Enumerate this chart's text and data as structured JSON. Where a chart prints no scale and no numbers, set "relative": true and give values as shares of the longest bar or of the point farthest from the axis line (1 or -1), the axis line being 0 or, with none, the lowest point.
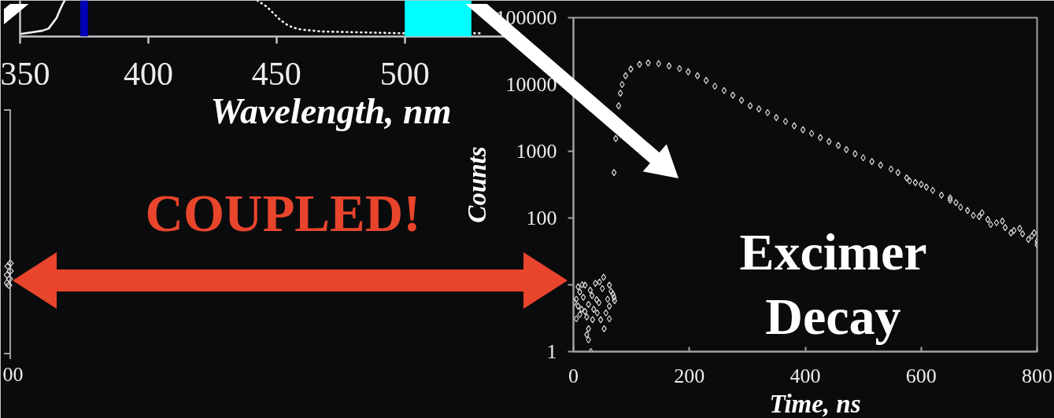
{
  "chart_data": [
    {
      "type": "line",
      "relative": true,
      "xlim": [
        350,
        540
      ],
      "xticks": [
        350,
        400,
        450,
        500
      ],
      "xlabel": "Wavelength, nm",
      "tick_labels": "x",
      "series": [
        {
          "color": "#f2f2f2",
          "x": [
            350.1,
            354.8,
            358.6,
            361.1,
            362.4,
            364.2,
            365.5,
            366.7,
            367.4
          ],
          "values": [
            0.07,
            0.12,
            0.16,
            0.22,
            0.34,
            0.51,
            0.73,
            0.91,
            1.0
          ]
        },
        {
          "color": "#f2f2f2",
          "line_style": "dotted",
          "x": [
            442.5,
            446.3,
            448.7,
            451.3,
            453.8,
            456.3,
            460,
            467.5,
            480.1,
            498.8,
            530
          ],
          "values": [
            1.0,
            0.82,
            0.65,
            0.47,
            0.34,
            0.25,
            0.19,
            0.14,
            0.12,
            0.09,
            0.09
          ]
        }
      ],
      "bands": [
        {
          "axis": "x",
          "from": 373.5,
          "to": 376.5,
          "color": "#0000b4"
        },
        {
          "axis": "x",
          "from": 500,
          "to": 526,
          "color": "#00ffff"
        }
      ]
    },
    {
      "type": "scatter",
      "marker": "diamond",
      "log": true,
      "xlim": [
        0,
        800
      ],
      "ylim": [
        1,
        100000
      ],
      "xticks": [
        0,
        200,
        400,
        600,
        800
      ],
      "yticks": [
        1,
        {
          "value": 10,
          "label": null
        },
        100,
        1000,
        10000,
        100000
      ],
      "xlabel": "Time, ns",
      "ylabel": "Counts",
      "annotations": [
        "Excimer\nDecay",
        "COUPLED!",
        "00"
      ],
      "series": [
        {
          "color": "#d9d9d9",
          "x": [
            52,
            8,
            20,
            38,
            62,
            11,
            29,
            50,
            68,
            5,
            17,
            32,
            59,
            71,
            8,
            26,
            44,
            62,
            14,
            35,
            56,
            5,
            23,
            41,
            62,
            11,
            47,
            53,
            26,
            23,
            26,
            30,
            2,
            15,
            45,
            65,
            70,
            40,
            20,
            33,
            70,
            73,
            76,
            78,
            81,
            84,
            90,
            99,
            114,
            129,
            147,
            165,
            183,
            198,
            214,
            229,
            244,
            260,
            275,
            290,
            305,
            320,
            335,
            350,
            366,
            381,
            396,
            411,
            426,
            441,
            457,
            471,
            486,
            500,
            515,
            530,
            548,
            560,
            575,
            590,
            609,
            620,
            635,
            650,
            668,
            680,
            690,
            700,
            715,
            730,
            745,
            760,
            775,
            791,
            800,
            580,
            600,
            650,
            660,
            705,
            720,
            740,
            755,
            770,
            785,
            795,
            800
          ],
          "values": [
            13,
            9.3,
            9.9,
            10.5,
            9.9,
            7.8,
            8.3,
            8.8,
            7.3,
            6.1,
            6.5,
            6.9,
            6.1,
            5.8,
            4.8,
            5.1,
            5.4,
            4.8,
            4.3,
            4.3,
            3.8,
            3.1,
            3.3,
            3.8,
            3.1,
            3.6,
            3.0,
            2.2,
            2.2,
            1.8,
            1.5,
            1.0,
            5.5,
            10,
            11,
            8,
            6.5,
            6,
            4,
            3,
            480,
            1550,
            null,
            4800,
            7400,
            10000,
            13500,
            17000,
            20000,
            21000,
            20500,
            19000,
            17300,
            15500,
            13500,
            11500,
            9400,
            8100,
            6900,
            5800,
            4800,
            4300,
            3800,
            3200,
            2800,
            2400,
            2100,
            1850,
            1600,
            1400,
            1220,
            1060,
            920,
            800,
            700,
            620,
            540,
            480,
            400,
            340,
            290,
            260,
            220,
            185,
            145,
            130,
            110,
            105,
            95,
            85,
            72,
            65,
            58,
            54,
            45,
            360,
            320,
            200,
            170,
            120,
            80,
            90,
            60,
            70,
            48,
            60,
            40
          ]
        }
      ]
    }
  ]
}
